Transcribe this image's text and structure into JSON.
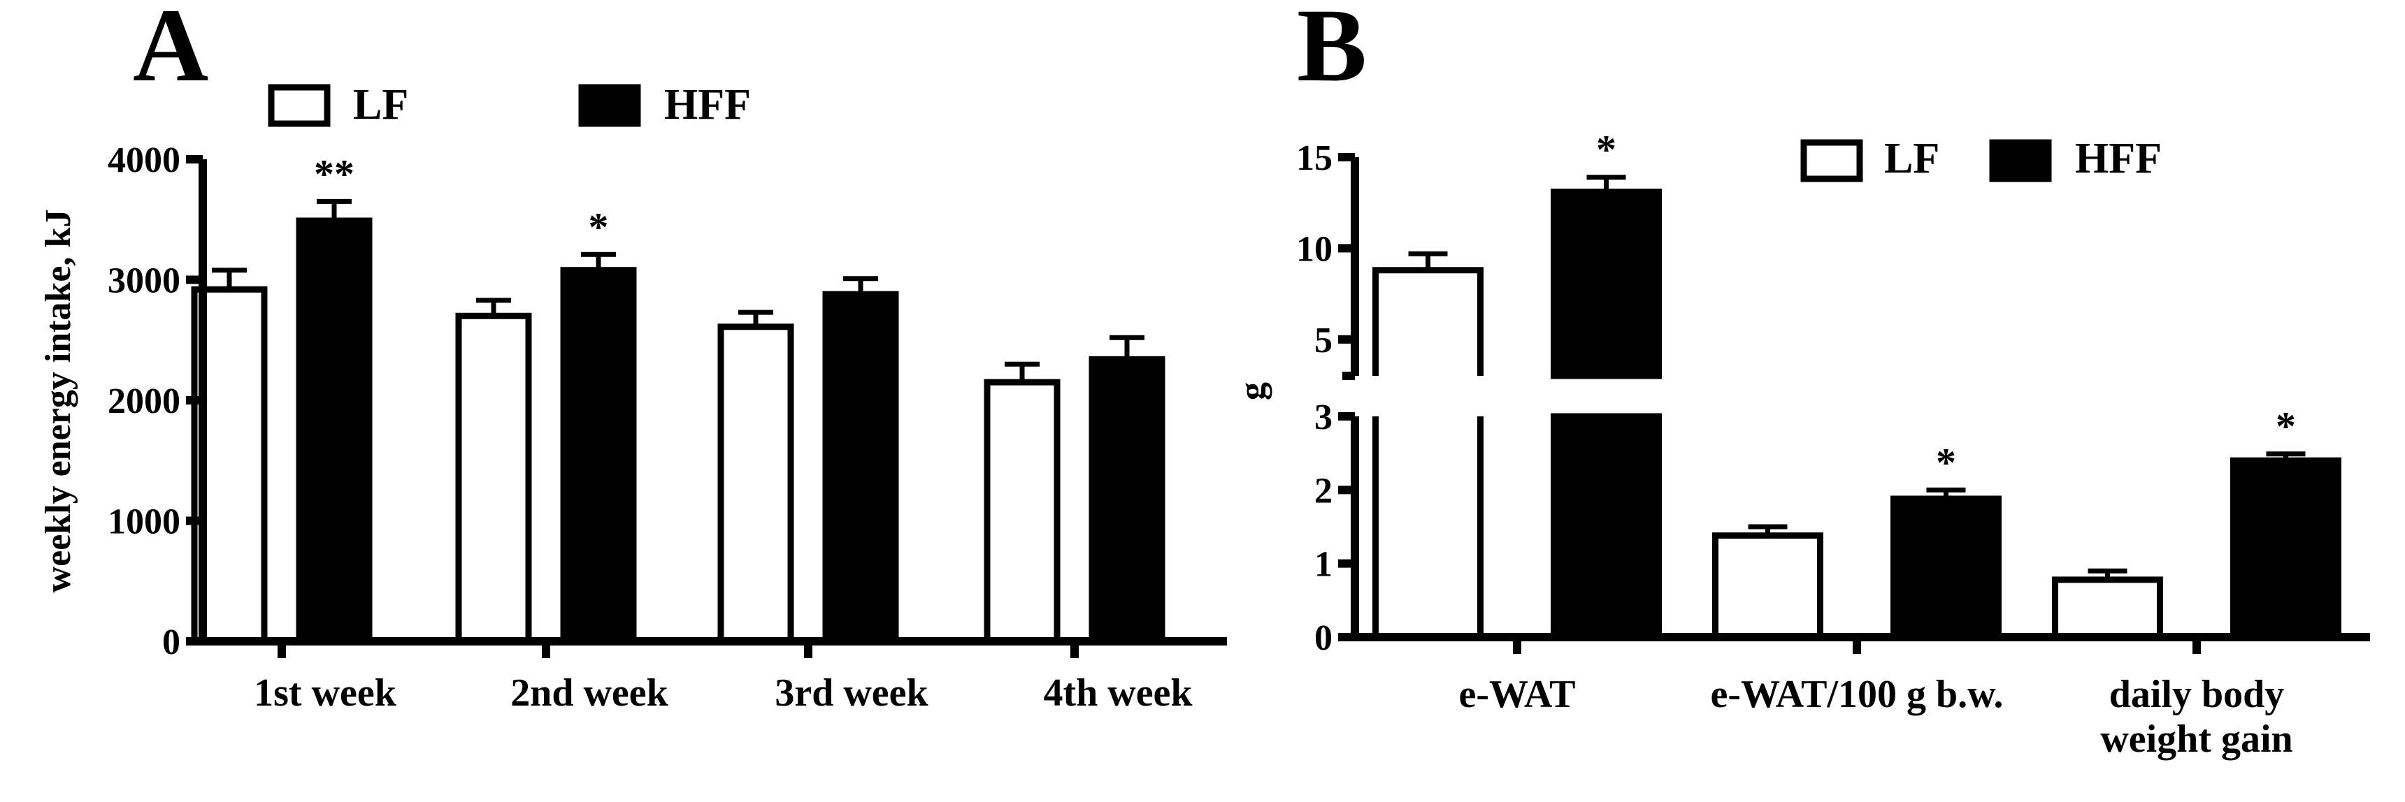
{
  "chart_data": [
    {
      "type": "bar",
      "panel": "A",
      "title": "",
      "xlabel": "",
      "ylabel": "weekly energy intake, kJ",
      "ylim": [
        0,
        4000
      ],
      "yticks": [
        0,
        1000,
        2000,
        3000,
        4000
      ],
      "categories": [
        "1st week",
        "2nd week",
        "3rd week",
        "4th week"
      ],
      "series": [
        {
          "name": "LF",
          "fill": "#ffffff",
          "values": [
            2920,
            2700,
            2610,
            2150
          ],
          "errors": [
            160,
            130,
            120,
            150
          ]
        },
        {
          "name": "HFF",
          "fill": "#000000",
          "values": [
            3490,
            3080,
            2880,
            2340
          ],
          "errors": [
            160,
            130,
            130,
            180
          ]
        }
      ],
      "significance": [
        "**",
        "*",
        "",
        ""
      ],
      "legend": "top"
    },
    {
      "type": "bar",
      "panel": "B",
      "title": "",
      "xlabel": "",
      "ylabel": "g",
      "y_break": {
        "lower": [
          0,
          3
        ],
        "upper": [
          3,
          15
        ]
      },
      "yticks_lower": [
        0,
        1,
        2,
        3
      ],
      "yticks_upper": [
        5,
        10,
        15
      ],
      "categories": [
        "e-WAT",
        "e-WAT/100 g b.w.",
        "daily body weight gain"
      ],
      "category_lines": [
        [
          "e-WAT"
        ],
        [
          "e-WAT/100 g b.w."
        ],
        [
          "daily body",
          "weight gain"
        ]
      ],
      "series": [
        {
          "name": "LF",
          "fill": "#ffffff",
          "values": [
            8.8,
            1.38,
            0.78
          ],
          "errors": [
            0.9,
            0.12,
            0.12
          ]
        },
        {
          "name": "HFF",
          "fill": "#000000",
          "values": [
            13.1,
            1.88,
            2.4
          ],
          "errors": [
            0.8,
            0.12,
            0.09
          ]
        }
      ],
      "significance": [
        "*",
        "*",
        "*"
      ],
      "legend": "top-right"
    }
  ]
}
